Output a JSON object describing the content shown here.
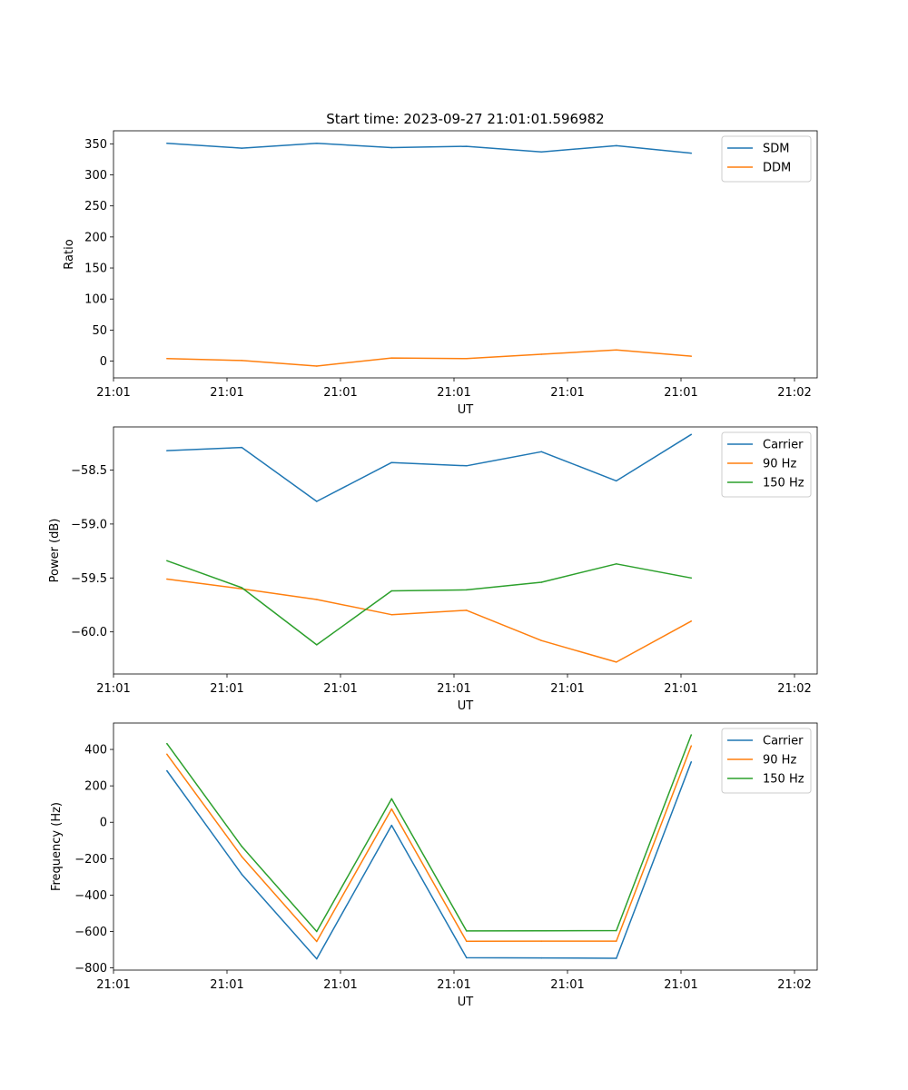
{
  "title": "Start time: 2023-09-27 21:01:01.596982",
  "chart_data": [
    {
      "type": "line",
      "xlabel": "UT",
      "ylabel": "Ratio",
      "xlim": [
        0,
        6.2
      ],
      "xticks": [
        0,
        1,
        2,
        3,
        4,
        5,
        6
      ],
      "xtick_labels": [
        "21:01",
        "21:01",
        "21:01",
        "21:01",
        "21:01",
        "21:01",
        "21:02"
      ],
      "ylim": [
        -27,
        371
      ],
      "yticks": [
        0,
        50,
        100,
        150,
        200,
        250,
        300,
        350
      ],
      "ytick_labels": [
        "0",
        "50",
        "100",
        "150",
        "200",
        "250",
        "300",
        "350"
      ],
      "x": [
        0.47,
        1.13,
        1.79,
        2.45,
        3.11,
        3.77,
        4.43,
        5.09
      ],
      "legend_position": "top-right",
      "series": [
        {
          "name": "SDM",
          "color": "#1f77b4",
          "values": [
            351,
            343,
            351,
            344,
            346,
            337,
            347,
            335
          ]
        },
        {
          "name": "DDM",
          "color": "#ff7f0e",
          "values": [
            4,
            1,
            -8,
            5,
            4,
            11,
            18,
            8
          ]
        }
      ]
    },
    {
      "type": "line",
      "xlabel": "UT",
      "ylabel": "Power (dB)",
      "xlim": [
        0,
        6.2
      ],
      "xticks": [
        0,
        1,
        2,
        3,
        4,
        5,
        6
      ],
      "xtick_labels": [
        "21:01",
        "21:01",
        "21:01",
        "21:01",
        "21:01",
        "21:01",
        "21:02"
      ],
      "ylim": [
        -60.39,
        -58.1
      ],
      "yticks": [
        -60.0,
        -59.5,
        -59.0,
        -58.5
      ],
      "ytick_labels": [
        "−60.0",
        "−59.5",
        "−59.0",
        "−58.5"
      ],
      "x": [
        0.47,
        1.13,
        1.79,
        2.45,
        3.11,
        3.77,
        4.43,
        5.09
      ],
      "legend_position": "top-right",
      "series": [
        {
          "name": "Carrier",
          "color": "#1f77b4",
          "values": [
            -58.32,
            -58.29,
            -58.79,
            -58.43,
            -58.46,
            -58.33,
            -58.6,
            -58.17
          ]
        },
        {
          "name": "90 Hz",
          "color": "#ff7f0e",
          "values": [
            -59.51,
            -59.6,
            -59.7,
            -59.84,
            -59.8,
            -60.08,
            -60.28,
            -59.9
          ]
        },
        {
          "name": "150 Hz",
          "color": "#2ca02c",
          "values": [
            -59.34,
            -59.59,
            -60.12,
            -59.62,
            -59.61,
            -59.54,
            -59.37,
            -59.5
          ]
        }
      ]
    },
    {
      "type": "line",
      "xlabel": "UT",
      "ylabel": "Frequency (Hz)",
      "xlim": [
        0,
        6.2
      ],
      "xticks": [
        0,
        1,
        2,
        3,
        4,
        5,
        6
      ],
      "xtick_labels": [
        "21:01",
        "21:01",
        "21:01",
        "21:01",
        "21:01",
        "21:01",
        "21:02"
      ],
      "ylim": [
        -812,
        545
      ],
      "yticks": [
        -800,
        -600,
        -400,
        -200,
        0,
        200,
        400
      ],
      "ytick_labels": [
        "−800",
        "−600",
        "−400",
        "−200",
        "0",
        "200",
        "400"
      ],
      "x": [
        0.47,
        1.13,
        1.79,
        2.45,
        3.11,
        3.77,
        4.43,
        5.09
      ],
      "legend_position": "top-right",
      "series": [
        {
          "name": "Carrier",
          "color": "#1f77b4",
          "values": [
            283,
            -286,
            -750,
            -17,
            -744,
            -745,
            -747,
            332
          ]
        },
        {
          "name": "90 Hz",
          "color": "#ff7f0e",
          "values": [
            374,
            -189,
            -655,
            73,
            -654,
            -653,
            -653,
            420
          ]
        },
        {
          "name": "150 Hz",
          "color": "#2ca02c",
          "values": [
            432,
            -133,
            -600,
            129,
            -597,
            -596,
            -595,
            480
          ]
        }
      ]
    }
  ]
}
